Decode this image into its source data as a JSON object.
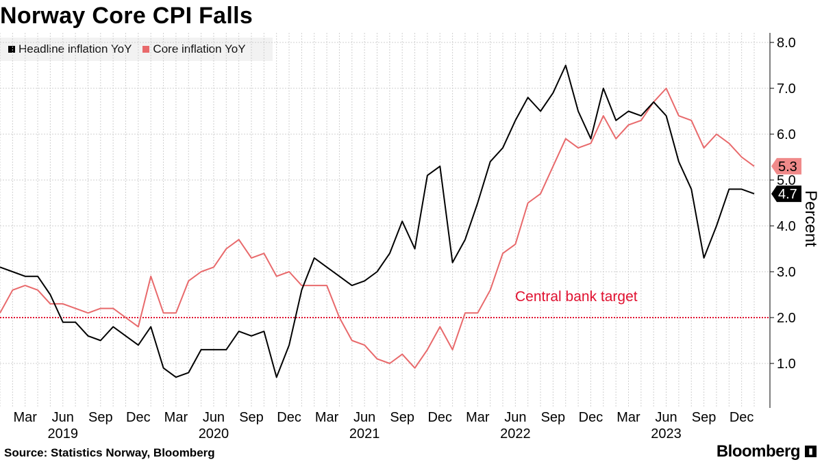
{
  "title": "Norway Core CPI Falls",
  "source": "Source: Statistics Norway, Bloomberg",
  "brand": "Bloomberg",
  "colors": {
    "headline": "#000000",
    "core": "#e8696b",
    "target": "#e0102f",
    "grid": "#cfcfcf"
  },
  "chart_data": {
    "type": "line",
    "x": [
      "2019-01",
      "2019-02",
      "2019-03",
      "2019-04",
      "2019-05",
      "2019-06",
      "2019-07",
      "2019-08",
      "2019-09",
      "2019-10",
      "2019-11",
      "2019-12",
      "2020-01",
      "2020-02",
      "2020-03",
      "2020-04",
      "2020-05",
      "2020-06",
      "2020-07",
      "2020-08",
      "2020-09",
      "2020-10",
      "2020-11",
      "2020-12",
      "2021-01",
      "2021-02",
      "2021-03",
      "2021-04",
      "2021-05",
      "2021-06",
      "2021-07",
      "2021-08",
      "2021-09",
      "2021-10",
      "2021-11",
      "2021-12",
      "2022-01",
      "2022-02",
      "2022-03",
      "2022-04",
      "2022-05",
      "2022-06",
      "2022-07",
      "2022-08",
      "2022-09",
      "2022-10",
      "2022-11",
      "2022-12",
      "2023-01",
      "2023-02",
      "2023-03",
      "2023-04",
      "2023-05",
      "2023-06",
      "2023-07",
      "2023-08",
      "2023-09",
      "2023-10",
      "2023-11",
      "2023-12",
      "2024-01"
    ],
    "series": [
      {
        "name": "Headline inflation YoY",
        "values": [
          3.1,
          3.0,
          2.9,
          2.9,
          2.5,
          1.9,
          1.9,
          1.6,
          1.5,
          1.8,
          1.6,
          1.4,
          1.8,
          0.9,
          0.7,
          0.8,
          1.3,
          1.3,
          1.3,
          1.7,
          1.6,
          1.7,
          0.7,
          1.4,
          2.6,
          3.3,
          3.1,
          2.9,
          2.7,
          2.8,
          3.0,
          3.4,
          4.1,
          3.5,
          5.1,
          5.3,
          3.2,
          3.7,
          4.5,
          5.4,
          5.7,
          6.3,
          6.8,
          6.5,
          6.9,
          7.5,
          6.5,
          5.9,
          7.0,
          6.3,
          6.5,
          6.4,
          6.7,
          6.4,
          5.4,
          4.8,
          3.3,
          4.0,
          4.8,
          4.8,
          4.7
        ]
      },
      {
        "name": "Core inflation YoY",
        "values": [
          2.1,
          2.6,
          2.7,
          2.6,
          2.3,
          2.3,
          2.2,
          2.1,
          2.2,
          2.2,
          2.0,
          1.8,
          2.9,
          2.1,
          2.1,
          2.8,
          3.0,
          3.1,
          3.5,
          3.7,
          3.3,
          3.4,
          2.9,
          3.0,
          2.7,
          2.7,
          2.7,
          2.0,
          1.5,
          1.4,
          1.1,
          1.0,
          1.2,
          0.9,
          1.3,
          1.8,
          1.3,
          2.1,
          2.1,
          2.6,
          3.4,
          3.6,
          4.5,
          4.7,
          5.3,
          5.9,
          5.7,
          5.8,
          6.4,
          5.9,
          6.2,
          6.3,
          6.7,
          7.0,
          6.4,
          6.3,
          5.7,
          6.0,
          5.8,
          5.5,
          5.3
        ]
      }
    ],
    "last_labels": [
      "4.7",
      "5.3"
    ],
    "target": {
      "value": 2.0,
      "label": "Central bank target"
    },
    "ylabel": "Percent",
    "ylim": [
      0,
      8.0
    ],
    "yticks": [
      "8.0",
      "7.0",
      "6.0",
      "5.0",
      "4.0",
      "3.0",
      "2.0",
      "1.0"
    ],
    "xtick_months": [
      "Mar",
      "Jun",
      "Sep",
      "Dec",
      "Mar",
      "Jun",
      "Sep",
      "Dec",
      "Mar",
      "Jun",
      "Sep",
      "Dec",
      "Mar",
      "Jun",
      "Sep",
      "Dec",
      "Mar",
      "Jun",
      "Sep",
      "Dec"
    ],
    "xtick_years": [
      "2019",
      "2020",
      "2021",
      "2022",
      "2023"
    ],
    "grid": true,
    "legend_position": "top-left"
  }
}
